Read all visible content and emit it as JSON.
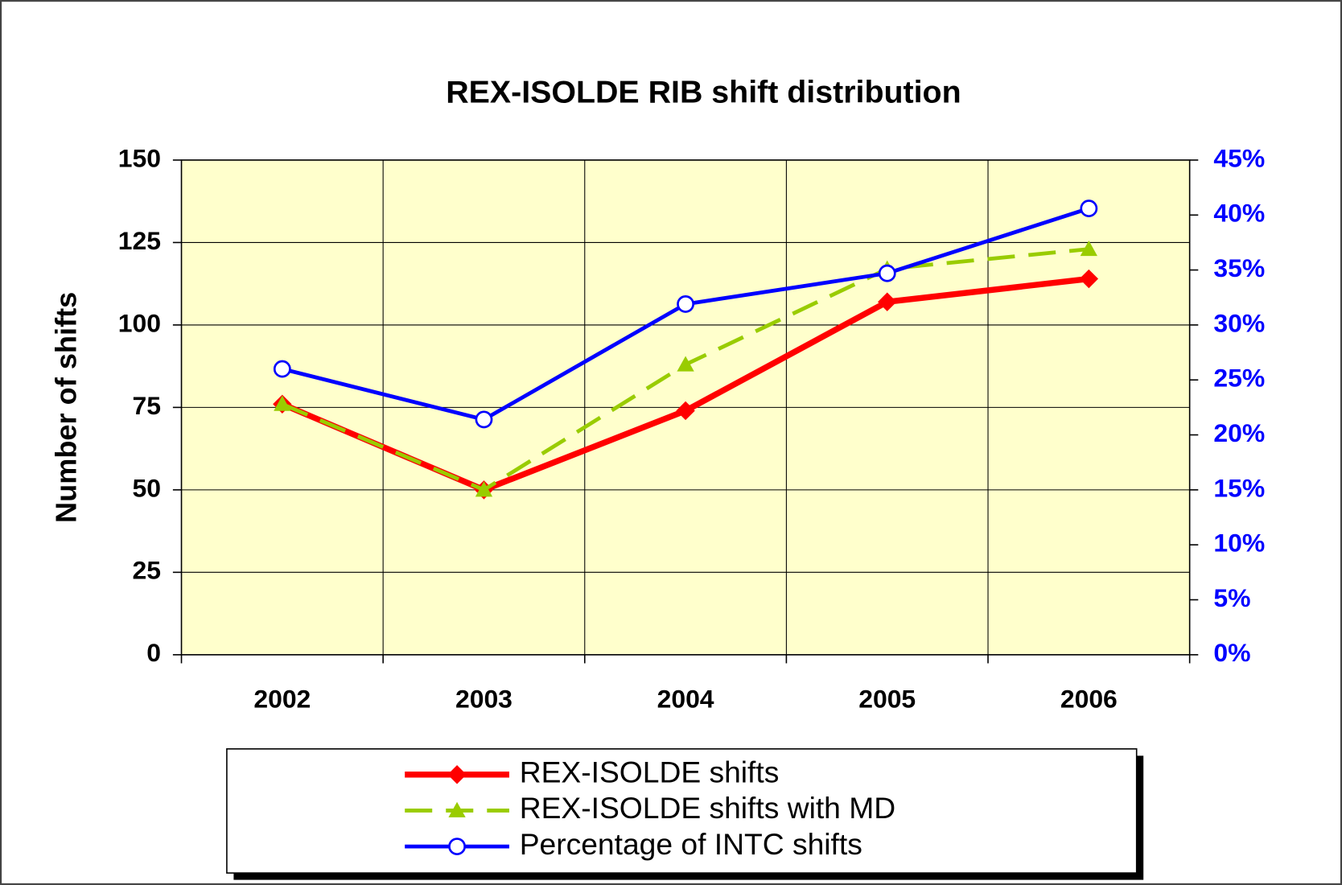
{
  "chart_data": {
    "type": "line",
    "title": "REX-ISOLDE RIB shift distribution",
    "y_label": "Number of shifts",
    "categories": [
      "2002",
      "2003",
      "2004",
      "2005",
      "2006"
    ],
    "series": [
      {
        "name": "REX-ISOLDE shifts",
        "color": "#ff0000",
        "marker": "diamond",
        "dashed": false,
        "values": [
          76,
          50,
          74,
          107,
          114
        ]
      },
      {
        "name": "REX-ISOLDE shifts with MD",
        "color": "#99cc00",
        "marker": "triangle",
        "dashed": true,
        "values": [
          76,
          50,
          88,
          117,
          123
        ]
      },
      {
        "name": "Percentage of INTC shifts",
        "color": "#0000ff",
        "marker": "circle",
        "dashed": false,
        "axis": "y2",
        "values": [
          26,
          21.4,
          31.9,
          34.7,
          40.6
        ]
      }
    ],
    "ylim": [
      0,
      150
    ],
    "yticks": [
      0,
      25,
      50,
      75,
      100,
      125,
      150
    ],
    "y2lim": [
      0,
      45
    ],
    "y2ticks": [
      {
        "value": 0,
        "label": "0%"
      },
      {
        "value": 5,
        "label": "5%"
      },
      {
        "value": 10,
        "label": "10%"
      },
      {
        "value": 15,
        "label": "15%"
      },
      {
        "value": 20,
        "label": "20%"
      },
      {
        "value": 25,
        "label": "25%"
      },
      {
        "value": 30,
        "label": "30%"
      },
      {
        "value": 35,
        "label": "35%"
      },
      {
        "value": 40,
        "label": "40%"
      },
      {
        "value": 45,
        "label": "45%"
      }
    ],
    "y2_color": "#0000ff",
    "plot_background": "#ffffcc",
    "grid": true,
    "legend": "bottom"
  }
}
